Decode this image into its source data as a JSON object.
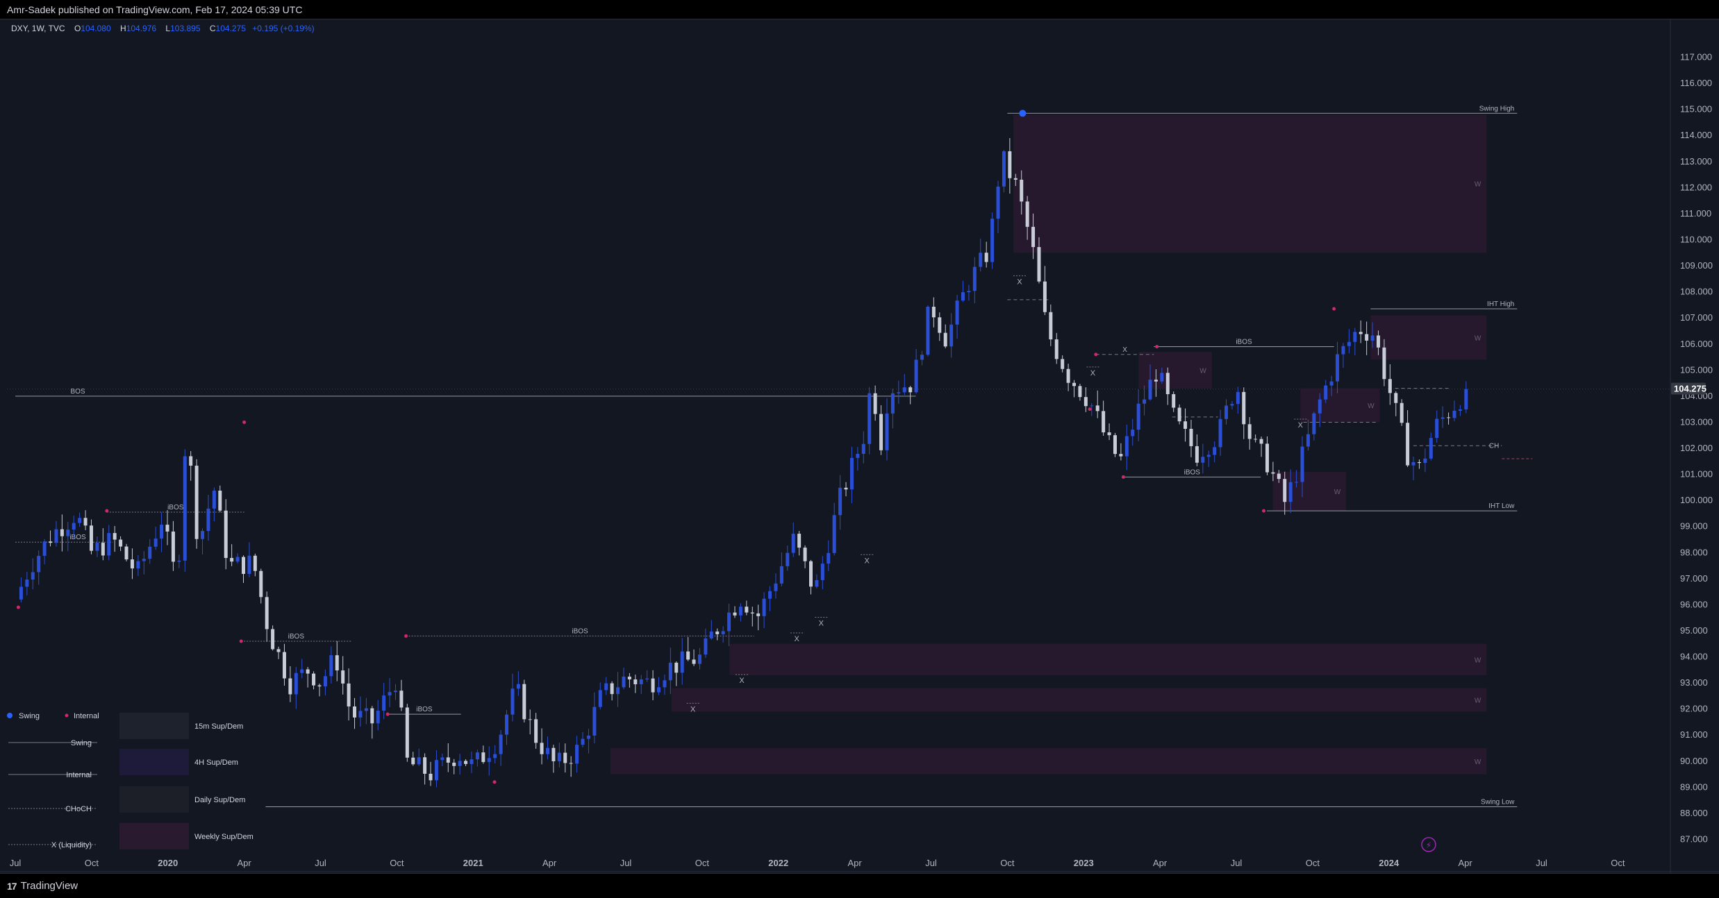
{
  "header": {
    "published": "Amr-Sadek published on TradingView.com, Feb 17, 2024 05:39 UTC"
  },
  "footer": {
    "brand": "TradingView",
    "brand_mark": "17"
  },
  "symbol": {
    "name": "DXY, 1W, TVC",
    "o_label": "O",
    "o": "104.080",
    "h_label": "H",
    "h": "104.976",
    "l_label": "L",
    "l": "103.895",
    "c_label": "C",
    "c": "104.275",
    "change": "+0.195 (+0.19%)"
  },
  "colors": {
    "background": "#131722",
    "bull": "#2a4fd6",
    "bear": "#c8ccd6",
    "zone": "#2a1a30",
    "swing_dot": "#2962ff",
    "internal_dot": "#d1276b",
    "last_price_bg": "#363a45"
  },
  "last_price": {
    "label": "104.275",
    "value": 104.275
  },
  "chart_data": {
    "type": "candlestick",
    "y_axis": {
      "range": [
        86.8,
        117.6
      ],
      "ticks": [
        "87.000",
        "88.000",
        "89.000",
        "90.000",
        "91.000",
        "92.000",
        "93.000",
        "94.000",
        "95.000",
        "96.000",
        "97.000",
        "98.000",
        "99.000",
        "100.000",
        "101.000",
        "102.000",
        "103.000",
        "104.000",
        "105.000",
        "106.000",
        "107.000",
        "108.000",
        "109.000",
        "110.000",
        "111.000",
        "112.000",
        "113.000",
        "114.000",
        "115.000",
        "116.000",
        "117.000"
      ]
    },
    "x_axis": {
      "ticks": [
        {
          "label": "Jul",
          "t": 0
        },
        {
          "label": "Oct",
          "t": 0.25
        },
        {
          "label": "2020",
          "t": 0.5,
          "bold": true
        },
        {
          "label": "Apr",
          "t": 0.75
        },
        {
          "label": "Jul",
          "t": 1.0
        },
        {
          "label": "Oct",
          "t": 1.25
        },
        {
          "label": "2021",
          "t": 1.5,
          "bold": true
        },
        {
          "label": "Apr",
          "t": 1.75
        },
        {
          "label": "Jul",
          "t": 2.0
        },
        {
          "label": "Oct",
          "t": 2.25
        },
        {
          "label": "2022",
          "t": 2.5,
          "bold": true
        },
        {
          "label": "Apr",
          "t": 2.75
        },
        {
          "label": "Jul",
          "t": 3.0
        },
        {
          "label": "Oct",
          "t": 3.25
        },
        {
          "label": "2023",
          "t": 3.5,
          "bold": true
        },
        {
          "label": "Apr",
          "t": 3.75
        },
        {
          "label": "Jul",
          "t": 4.0
        },
        {
          "label": "Oct",
          "t": 4.25
        },
        {
          "label": "2024",
          "t": 4.5,
          "bold": true
        },
        {
          "label": "Apr",
          "t": 4.75
        },
        {
          "label": "Jul",
          "t": 5.0
        },
        {
          "label": "Oct",
          "t": 5.25
        }
      ]
    },
    "anchors": [
      [
        0.0,
        96.2
      ],
      [
        0.05,
        97.5
      ],
      [
        0.12,
        98.7
      ],
      [
        0.2,
        99.5
      ],
      [
        0.25,
        98.0
      ],
      [
        0.32,
        98.5
      ],
      [
        0.4,
        97.2
      ],
      [
        0.48,
        99.3
      ],
      [
        0.53,
        96.8
      ],
      [
        0.56,
        102.8
      ],
      [
        0.6,
        98.3
      ],
      [
        0.65,
        100.5
      ],
      [
        0.7,
        97.5
      ],
      [
        0.78,
        97.6
      ],
      [
        0.83,
        95.0
      ],
      [
        0.9,
        93.0
      ],
      [
        0.96,
        93.5
      ],
      [
        1.0,
        93.0
      ],
      [
        1.05,
        94.0
      ],
      [
        1.1,
        91.8
      ],
      [
        1.17,
        91.5
      ],
      [
        1.25,
        93.2
      ],
      [
        1.28,
        90.0
      ],
      [
        1.36,
        89.5
      ],
      [
        1.45,
        90.3
      ],
      [
        1.5,
        89.8
      ],
      [
        1.58,
        90.8
      ],
      [
        1.64,
        92.8
      ],
      [
        1.7,
        91.0
      ],
      [
        1.77,
        89.8
      ],
      [
        1.85,
        90.5
      ],
      [
        1.92,
        92.5
      ],
      [
        2.0,
        93.2
      ],
      [
        2.08,
        93.0
      ],
      [
        2.14,
        93.6
      ],
      [
        2.25,
        94.0
      ],
      [
        2.28,
        94.8
      ],
      [
        2.38,
        96.3
      ],
      [
        2.43,
        95.5
      ],
      [
        2.47,
        96.5
      ],
      [
        2.55,
        98.5
      ],
      [
        2.62,
        96.5
      ],
      [
        2.7,
        100.0
      ],
      [
        2.78,
        102.5
      ],
      [
        2.8,
        104.2
      ],
      [
        2.82,
        103.6
      ],
      [
        2.84,
        102.0
      ],
      [
        2.86,
        104.3
      ],
      [
        2.94,
        104.5
      ],
      [
        3.0,
        107.5
      ],
      [
        3.05,
        106.2
      ],
      [
        3.12,
        108.3
      ],
      [
        3.19,
        109.6
      ],
      [
        3.23,
        113.2
      ],
      [
        3.28,
        112.0
      ],
      [
        3.33,
        109.8
      ],
      [
        3.38,
        106.5
      ],
      [
        3.45,
        104.8
      ],
      [
        3.52,
        103.8
      ],
      [
        3.58,
        102.2
      ],
      [
        3.62,
        101.5
      ],
      [
        3.68,
        103.5
      ],
      [
        3.74,
        105.0
      ],
      [
        3.8,
        103.0
      ],
      [
        3.87,
        101.8
      ],
      [
        3.94,
        102.5
      ],
      [
        4.0,
        104.5
      ],
      [
        4.05,
        102.2
      ],
      [
        4.1,
        101.5
      ],
      [
        4.16,
        99.9
      ],
      [
        4.22,
        101.8
      ],
      [
        4.27,
        103.7
      ],
      [
        4.33,
        105.4
      ],
      [
        4.4,
        106.6
      ],
      [
        4.45,
        106.4
      ],
      [
        4.5,
        104.3
      ],
      [
        4.56,
        101.8
      ],
      [
        4.6,
        101.2
      ],
      [
        4.65,
        102.8
      ],
      [
        4.71,
        103.6
      ],
      [
        4.76,
        104.275
      ]
    ],
    "zones": [
      {
        "from_t": 3.27,
        "to_t": 4.82,
        "low": 109.5,
        "high": 114.8,
        "label": "W"
      },
      {
        "from_t": 4.44,
        "to_t": 4.82,
        "low": 105.4,
        "high": 107.1,
        "label": "W"
      },
      {
        "from_t": 3.68,
        "to_t": 3.92,
        "low": 104.3,
        "high": 105.7,
        "label": "W"
      },
      {
        "from_t": 4.21,
        "to_t": 4.47,
        "low": 103.0,
        "high": 104.3,
        "label": "W"
      },
      {
        "from_t": 4.12,
        "to_t": 4.36,
        "low": 99.6,
        "high": 101.1,
        "label": "W"
      },
      {
        "from_t": 2.34,
        "to_t": 4.82,
        "low": 93.3,
        "high": 94.5,
        "label": "W"
      },
      {
        "from_t": 2.15,
        "to_t": 4.82,
        "low": 91.9,
        "high": 92.8,
        "label": "W"
      },
      {
        "from_t": 1.95,
        "to_t": 4.82,
        "low": 89.5,
        "high": 90.5,
        "label": "W"
      }
    ],
    "lines": [
      {
        "from_t": 3.25,
        "to_t": 4.92,
        "y": 114.85,
        "style": "solid",
        "label": "Swing High",
        "label_anchor": "end"
      },
      {
        "from_t": 4.44,
        "to_t": 4.92,
        "y": 107.35,
        "style": "solid",
        "label": "IHT High",
        "label_anchor": "end"
      },
      {
        "from_t": 4.1,
        "to_t": 4.92,
        "y": 99.6,
        "style": "solid",
        "label": "IHT Low",
        "label_anchor": "end"
      },
      {
        "from_t": 0.82,
        "to_t": 4.92,
        "y": 88.25,
        "style": "solid",
        "label": "Swing Low",
        "label_anchor": "end"
      },
      {
        "from_t": 0.0,
        "to_t": 2.95,
        "y": 104.0,
        "style": "solid",
        "label": "BOS",
        "label_anchor": "start"
      },
      {
        "from_t": 0.3,
        "to_t": 0.75,
        "y": 99.55,
        "style": "dotted",
        "label": "iBOS",
        "label_anchor": "mid"
      },
      {
        "from_t": 0.0,
        "to_t": 0.32,
        "y": 98.4,
        "style": "dotted",
        "label": "iBOS",
        "label_anchor": "start"
      },
      {
        "from_t": 0.74,
        "to_t": 1.1,
        "y": 94.6,
        "style": "dotted",
        "label": "iBOS",
        "label_anchor": "mid"
      },
      {
        "from_t": 1.28,
        "to_t": 2.42,
        "y": 94.8,
        "style": "dotted",
        "label": "iBOS",
        "label_anchor": "mid"
      },
      {
        "from_t": 1.22,
        "to_t": 1.46,
        "y": 91.8,
        "style": "solid",
        "label": "iBOS",
        "label_anchor": "mid"
      },
      {
        "from_t": 3.73,
        "to_t": 4.32,
        "y": 105.9,
        "style": "solid",
        "label": "iBOS",
        "label_anchor": "mid"
      },
      {
        "from_t": 3.63,
        "to_t": 4.08,
        "y": 100.9,
        "style": "solid",
        "label": "iBOS",
        "label_anchor": "mid"
      },
      {
        "from_t": 4.58,
        "to_t": 4.87,
        "y": 102.1,
        "style": "dashed",
        "label": "CH",
        "label_anchor": "end"
      },
      {
        "from_t": 3.25,
        "to_t": 3.39,
        "y": 107.7,
        "style": "dashed",
        "label": "",
        "label_anchor": "end"
      },
      {
        "from_t": 3.54,
        "to_t": 3.73,
        "y": 105.6,
        "style": "dashed",
        "label": "X",
        "label_anchor": "mid"
      },
      {
        "from_t": 3.79,
        "to_t": 3.94,
        "y": 103.2,
        "style": "dashed",
        "label": "",
        "label_anchor": "end"
      },
      {
        "from_t": 4.22,
        "to_t": 4.46,
        "y": 103.0,
        "style": "dashed",
        "label": "",
        "label_anchor": "end"
      },
      {
        "from_t": 4.52,
        "to_t": 4.7,
        "y": 104.3,
        "style": "dashed",
        "label": "",
        "label_anchor": "end"
      }
    ],
    "markers": [
      {
        "t": 3.29,
        "y": 108.3,
        "label": "X"
      },
      {
        "t": 3.53,
        "y": 104.8,
        "label": "X"
      },
      {
        "t": 4.21,
        "y": 102.8,
        "label": "X"
      },
      {
        "t": 2.79,
        "y": 97.6,
        "label": "X"
      },
      {
        "t": 2.64,
        "y": 95.2,
        "label": "X"
      },
      {
        "t": 2.56,
        "y": 94.6,
        "label": "X"
      },
      {
        "t": 2.38,
        "y": 93.0,
        "label": "X"
      },
      {
        "t": 2.22,
        "y": 91.9,
        "label": "X"
      }
    ],
    "pivots": [
      {
        "t": 3.3,
        "y": 114.85,
        "kind": "swing"
      },
      {
        "t": 0.01,
        "y": 95.9,
        "kind": "internal"
      },
      {
        "t": 0.3,
        "y": 99.6,
        "kind": "internal"
      },
      {
        "t": 0.75,
        "y": 103.0,
        "kind": "internal"
      },
      {
        "t": 0.74,
        "y": 94.6,
        "kind": "internal"
      },
      {
        "t": 1.28,
        "y": 94.8,
        "kind": "internal"
      },
      {
        "t": 1.22,
        "y": 91.8,
        "kind": "internal"
      },
      {
        "t": 1.57,
        "y": 89.2,
        "kind": "internal"
      },
      {
        "t": 3.54,
        "y": 105.6,
        "kind": "internal"
      },
      {
        "t": 3.74,
        "y": 105.9,
        "kind": "internal"
      },
      {
        "t": 3.63,
        "y": 100.9,
        "kind": "internal"
      },
      {
        "t": 3.52,
        "y": 103.5,
        "kind": "internal"
      },
      {
        "t": 4.32,
        "y": 107.35,
        "kind": "internal"
      },
      {
        "t": 4.09,
        "y": 99.6,
        "kind": "internal"
      }
    ]
  },
  "legend": {
    "swing_dot": "Swing",
    "internal_dot": "Internal",
    "swing_line": "Swing",
    "internal_line": "Internal",
    "choch_line": "CHoCH",
    "liquidity_line": "X (Liquidity)",
    "boxes": [
      "15m Sup/Dem",
      "4H Sup/Dem",
      "Daily Sup/Dem",
      "Weekly Sup/Dem"
    ]
  }
}
